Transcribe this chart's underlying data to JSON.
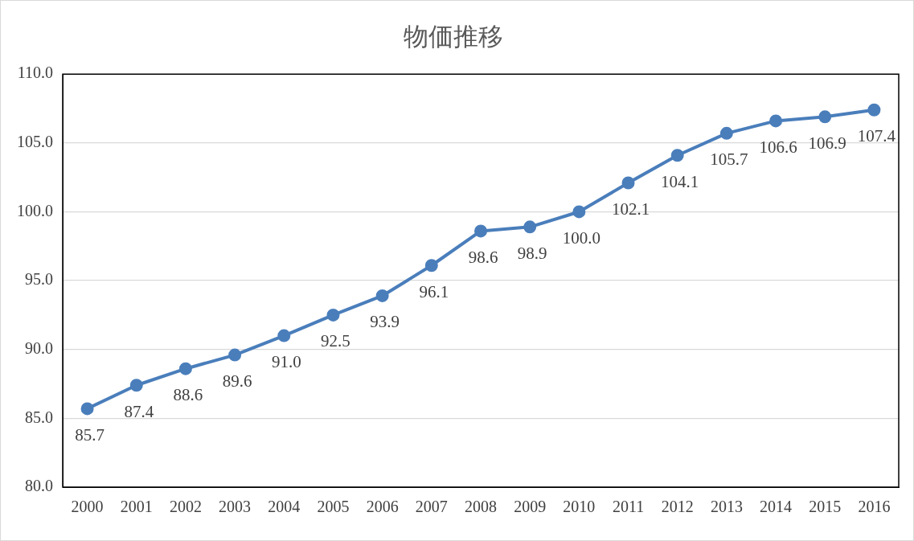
{
  "chart_data": {
    "type": "line",
    "title": "物価推移",
    "categories": [
      "2000",
      "2001",
      "2002",
      "2003",
      "2004",
      "2005",
      "2006",
      "2007",
      "2008",
      "2009",
      "2010",
      "2011",
      "2012",
      "2013",
      "2014",
      "2015",
      "2016"
    ],
    "series": [
      {
        "color": "#4a7ebb",
        "values": [
          85.7,
          87.4,
          88.6,
          89.6,
          91.0,
          92.5,
          93.9,
          96.1,
          98.6,
          98.9,
          100.0,
          102.1,
          104.1,
          105.7,
          106.6,
          106.9,
          107.4
        ],
        "value_labels": [
          "85.7",
          "87.4",
          "88.6",
          "89.6",
          "91.0",
          "92.5",
          "93.9",
          "96.1",
          "98.6",
          "98.9",
          "100.0",
          "102.1",
          "104.1",
          "105.7",
          "106.6",
          "106.9",
          "107.4"
        ]
      }
    ],
    "ylim": [
      80,
      110
    ],
    "yticks": [
      {
        "value": 80,
        "label": "80.0"
      },
      {
        "value": 85,
        "label": "85.0"
      },
      {
        "value": 90,
        "label": "90.0"
      },
      {
        "value": 95,
        "label": "95.0"
      },
      {
        "value": 100,
        "label": "100.0"
      },
      {
        "value": 105,
        "label": "105.0"
      },
      {
        "value": 110,
        "label": "110.0"
      }
    ],
    "grid": "y",
    "marker": "circle",
    "line_style": "solid",
    "legend": false
  }
}
